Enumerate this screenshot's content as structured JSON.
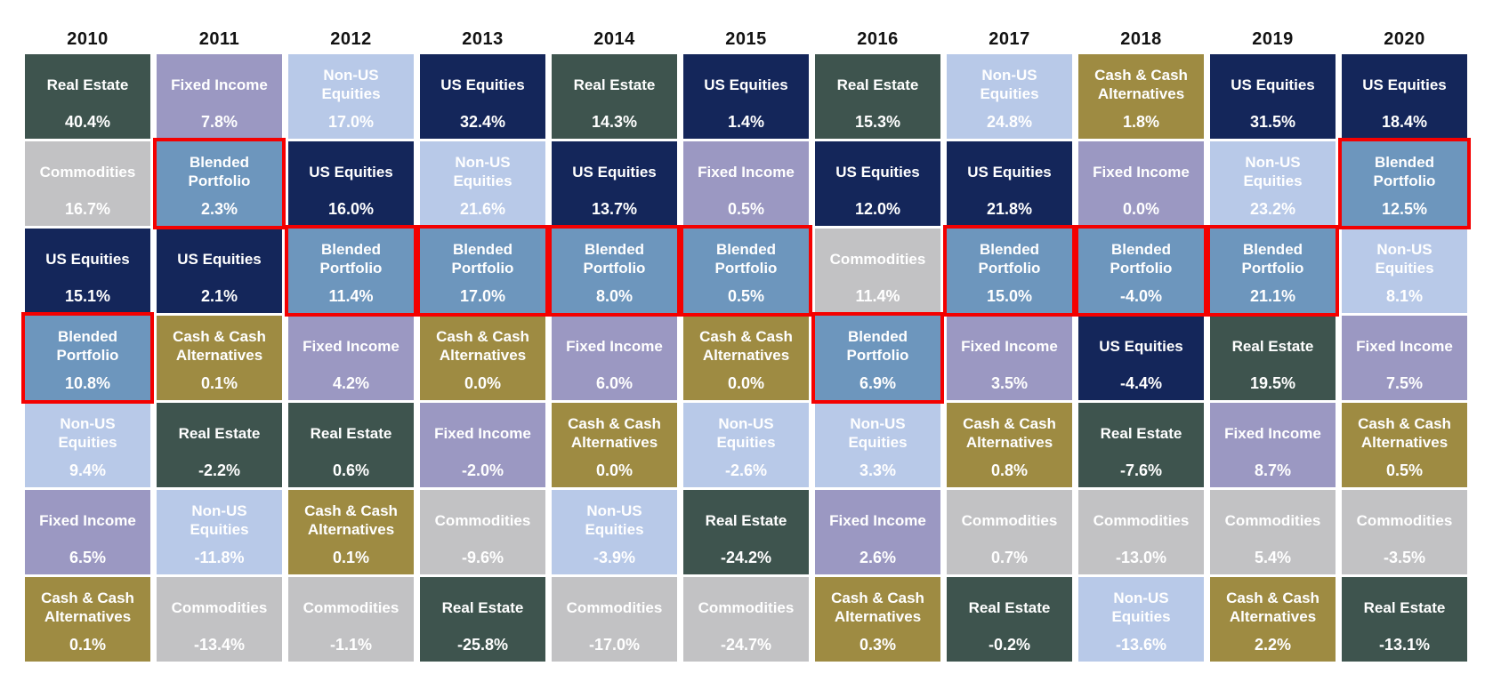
{
  "chart_data": {
    "type": "heatmap",
    "description": "Asset class annual returns quilt (periodic table of returns), ranked best-to-worst per year, 2010-2020. Blended Portfolio cells are outlined in red.",
    "highlight_outline_color": "#f40000",
    "years": [
      "2010",
      "2011",
      "2012",
      "2013",
      "2014",
      "2015",
      "2016",
      "2017",
      "2018",
      "2019",
      "2020"
    ],
    "assets": {
      "real_estate": {
        "label": "Real Estate",
        "label_lines": [
          "Real Estate"
        ],
        "color": "#3e544e",
        "text_color": "#ffffff"
      },
      "fixed_income": {
        "label": "Fixed Income",
        "label_lines": [
          "Fixed Income"
        ],
        "color": "#9b98c2",
        "text_color": "#ffffff"
      },
      "non_us": {
        "label": "Non-US Equities",
        "label_lines": [
          "Non-US",
          "Equities"
        ],
        "color": "#b8c9e8",
        "text_color": "#ffffff"
      },
      "us_equities": {
        "label": "US Equities",
        "label_lines": [
          "US Equities"
        ],
        "color": "#14265a",
        "text_color": "#ffffff"
      },
      "commodities": {
        "label": "Commodities",
        "label_lines": [
          "Commodities"
        ],
        "color": "#c2c2c4",
        "text_color": "#ffffff"
      },
      "cash": {
        "label": "Cash & Cash Alternatives",
        "label_lines": [
          "Cash & Cash",
          "Alternatives"
        ],
        "color": "#9e8b42",
        "text_color": "#ffffff"
      },
      "blended": {
        "label": "Blended Portfolio",
        "label_lines": [
          "Blended",
          "Portfolio"
        ],
        "color": "#6d96bd",
        "text_color": "#ffffff"
      }
    },
    "columns": [
      {
        "year": "2010",
        "cells": [
          {
            "asset": "real_estate",
            "value": "40.4%",
            "outlined": false
          },
          {
            "asset": "commodities",
            "value": "16.7%",
            "outlined": false
          },
          {
            "asset": "us_equities",
            "value": "15.1%",
            "outlined": false
          },
          {
            "asset": "blended",
            "value": "10.8%",
            "outlined": true
          },
          {
            "asset": "non_us",
            "value": "9.4%",
            "outlined": false
          },
          {
            "asset": "fixed_income",
            "value": "6.5%",
            "outlined": false
          },
          {
            "asset": "cash",
            "value": "0.1%",
            "outlined": false
          }
        ]
      },
      {
        "year": "2011",
        "cells": [
          {
            "asset": "fixed_income",
            "value": "7.8%",
            "outlined": false
          },
          {
            "asset": "blended",
            "value": "2.3%",
            "outlined": true
          },
          {
            "asset": "us_equities",
            "value": "2.1%",
            "outlined": false
          },
          {
            "asset": "cash",
            "value": "0.1%",
            "outlined": false
          },
          {
            "asset": "real_estate",
            "value": "-2.2%",
            "outlined": false
          },
          {
            "asset": "non_us",
            "value": "-11.8%",
            "outlined": false
          },
          {
            "asset": "commodities",
            "value": "-13.4%",
            "outlined": false
          }
        ]
      },
      {
        "year": "2012",
        "cells": [
          {
            "asset": "non_us",
            "value": "17.0%",
            "outlined": false
          },
          {
            "asset": "us_equities",
            "value": "16.0%",
            "outlined": false
          },
          {
            "asset": "blended",
            "value": "11.4%",
            "outlined": true
          },
          {
            "asset": "fixed_income",
            "value": "4.2%",
            "outlined": false
          },
          {
            "asset": "real_estate",
            "value": "0.6%",
            "outlined": false
          },
          {
            "asset": "cash",
            "value": "0.1%",
            "outlined": false
          },
          {
            "asset": "commodities",
            "value": "-1.1%",
            "outlined": false
          }
        ]
      },
      {
        "year": "2013",
        "cells": [
          {
            "asset": "us_equities",
            "value": "32.4%",
            "outlined": false
          },
          {
            "asset": "non_us",
            "value": "21.6%",
            "outlined": false
          },
          {
            "asset": "blended",
            "value": "17.0%",
            "outlined": true
          },
          {
            "asset": "cash",
            "value": "0.0%",
            "outlined": false
          },
          {
            "asset": "fixed_income",
            "value": "-2.0%",
            "outlined": false
          },
          {
            "asset": "commodities",
            "value": "-9.6%",
            "outlined": false
          },
          {
            "asset": "real_estate",
            "value": "-25.8%",
            "outlined": false
          }
        ]
      },
      {
        "year": "2014",
        "cells": [
          {
            "asset": "real_estate",
            "value": "14.3%",
            "outlined": false
          },
          {
            "asset": "us_equities",
            "value": "13.7%",
            "outlined": false
          },
          {
            "asset": "blended",
            "value": "8.0%",
            "outlined": true
          },
          {
            "asset": "fixed_income",
            "value": "6.0%",
            "outlined": false
          },
          {
            "asset": "cash",
            "value": "0.0%",
            "outlined": false
          },
          {
            "asset": "non_us",
            "value": "-3.9%",
            "outlined": false
          },
          {
            "asset": "commodities",
            "value": "-17.0%",
            "outlined": false
          }
        ]
      },
      {
        "year": "2015",
        "cells": [
          {
            "asset": "us_equities",
            "value": "1.4%",
            "outlined": false
          },
          {
            "asset": "fixed_income",
            "value": "0.5%",
            "outlined": false
          },
          {
            "asset": "blended",
            "value": "0.5%",
            "outlined": true
          },
          {
            "asset": "cash",
            "value": "0.0%",
            "outlined": false
          },
          {
            "asset": "non_us",
            "value": "-2.6%",
            "outlined": false
          },
          {
            "asset": "real_estate",
            "value": "-24.2%",
            "outlined": false
          },
          {
            "asset": "commodities",
            "value": "-24.7%",
            "outlined": false
          }
        ]
      },
      {
        "year": "2016",
        "cells": [
          {
            "asset": "real_estate",
            "value": "15.3%",
            "outlined": false
          },
          {
            "asset": "us_equities",
            "value": "12.0%",
            "outlined": false
          },
          {
            "asset": "commodities",
            "value": "11.4%",
            "outlined": false
          },
          {
            "asset": "blended",
            "value": "6.9%",
            "outlined": true
          },
          {
            "asset": "non_us",
            "value": "3.3%",
            "outlined": false
          },
          {
            "asset": "fixed_income",
            "value": "2.6%",
            "outlined": false
          },
          {
            "asset": "cash",
            "value": "0.3%",
            "outlined": false
          }
        ]
      },
      {
        "year": "2017",
        "cells": [
          {
            "asset": "non_us",
            "value": "24.8%",
            "outlined": false
          },
          {
            "asset": "us_equities",
            "value": "21.8%",
            "outlined": false
          },
          {
            "asset": "blended",
            "value": "15.0%",
            "outlined": true
          },
          {
            "asset": "fixed_income",
            "value": "3.5%",
            "outlined": false
          },
          {
            "asset": "cash",
            "value": "0.8%",
            "outlined": false
          },
          {
            "asset": "commodities",
            "value": "0.7%",
            "outlined": false
          },
          {
            "asset": "real_estate",
            "value": "-0.2%",
            "outlined": false
          }
        ]
      },
      {
        "year": "2018",
        "cells": [
          {
            "asset": "cash",
            "value": "1.8%",
            "outlined": false
          },
          {
            "asset": "fixed_income",
            "value": "0.0%",
            "outlined": false
          },
          {
            "asset": "blended",
            "value": "-4.0%",
            "outlined": true
          },
          {
            "asset": "us_equities",
            "value": "-4.4%",
            "outlined": false
          },
          {
            "asset": "real_estate",
            "value": "-7.6%",
            "outlined": false
          },
          {
            "asset": "commodities",
            "value": "-13.0%",
            "outlined": false
          },
          {
            "asset": "non_us",
            "value": "-13.6%",
            "outlined": false
          }
        ]
      },
      {
        "year": "2019",
        "cells": [
          {
            "asset": "us_equities",
            "value": "31.5%",
            "outlined": false
          },
          {
            "asset": "non_us",
            "value": "23.2%",
            "outlined": false
          },
          {
            "asset": "blended",
            "value": "21.1%",
            "outlined": true
          },
          {
            "asset": "real_estate",
            "value": "19.5%",
            "outlined": false
          },
          {
            "asset": "fixed_income",
            "value": "8.7%",
            "outlined": false
          },
          {
            "asset": "commodities",
            "value": "5.4%",
            "outlined": false
          },
          {
            "asset": "cash",
            "value": "2.2%",
            "outlined": false
          }
        ]
      },
      {
        "year": "2020",
        "cells": [
          {
            "asset": "us_equities",
            "value": "18.4%",
            "outlined": false
          },
          {
            "asset": "blended",
            "value": "12.5%",
            "outlined": true
          },
          {
            "asset": "non_us",
            "value": "8.1%",
            "outlined": false
          },
          {
            "asset": "fixed_income",
            "value": "7.5%",
            "outlined": false
          },
          {
            "asset": "cash",
            "value": "0.5%",
            "outlined": false
          },
          {
            "asset": "commodities",
            "value": "-3.5%",
            "outlined": false
          },
          {
            "asset": "real_estate",
            "value": "-13.1%",
            "outlined": false
          }
        ]
      }
    ]
  }
}
